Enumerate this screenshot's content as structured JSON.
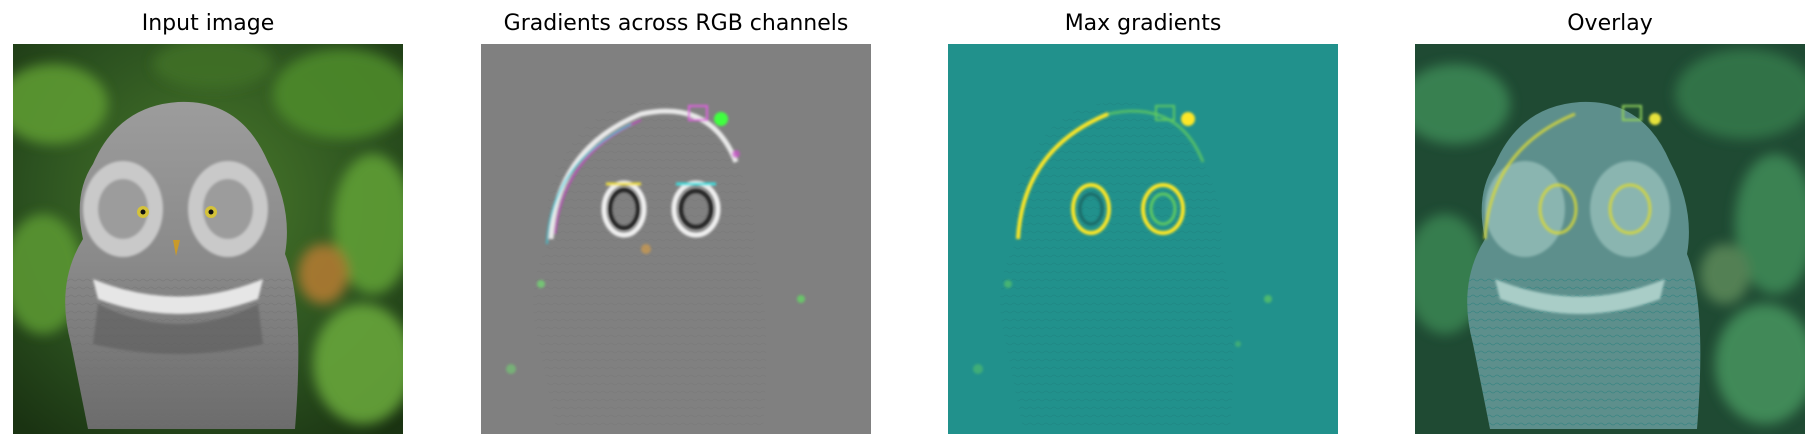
{
  "figure": {
    "panels": [
      {
        "id": "input",
        "title": "Input image",
        "image": "owl-photo"
      },
      {
        "id": "grad-rgb",
        "title": "Gradients across RGB channels",
        "image": "rgb-gradient-map"
      },
      {
        "id": "grad-max",
        "title": "Max gradients",
        "image": "max-gradient-map"
      },
      {
        "id": "overlay",
        "title": "Overlay",
        "image": "overlay-map"
      }
    ]
  },
  "colors": {
    "foliage_dark": "#1f3d16",
    "foliage_light": "#6aa236",
    "owl_gray": "#8e8e8e",
    "gradient_gray": "#808080",
    "viridis_teal": "#21918c",
    "viridis_yellow": "#fde725",
    "viridis_green": "#5ec962",
    "overlay_tint": "#2e8b7a"
  }
}
